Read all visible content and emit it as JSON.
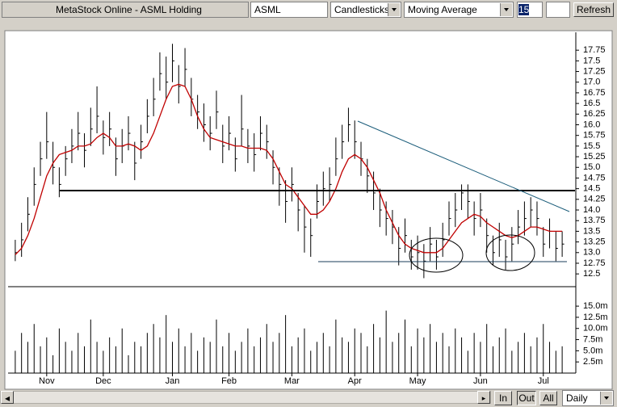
{
  "ui": {
    "window_title": "MetaStock Online - ASML Holding",
    "symbol": "ASML",
    "chart_style": "Candlesticks",
    "indicator": "Moving Average",
    "period": "15",
    "refresh": "Refresh",
    "zoom_in": "In",
    "zoom_out": "Out",
    "zoom_all": "All",
    "interval": "Daily"
  },
  "chart_data": [
    {
      "type": "candlestick",
      "color": "#000000",
      "categories": [
        null,
        null,
        null,
        null,
        null,
        null,
        null,
        null,
        null,
        null,
        null,
        null,
        null,
        null,
        null,
        null,
        null,
        null,
        null,
        null,
        null,
        null,
        null,
        null,
        null,
        null,
        null,
        null,
        null,
        null,
        null,
        null,
        null,
        null,
        null,
        null,
        null,
        null,
        null,
        null,
        null,
        null,
        null,
        null,
        null,
        null,
        null,
        null,
        null,
        null,
        null,
        null,
        null,
        null,
        null,
        null,
        null,
        null,
        null,
        null,
        null,
        null,
        null,
        null,
        null,
        null,
        null,
        null,
        null,
        null,
        null,
        null,
        null,
        null,
        null,
        null,
        null,
        null,
        null,
        null,
        null,
        null,
        null,
        null,
        null,
        null,
        null,
        null
      ],
      "high": [
        13.3,
        13.7,
        14.3,
        15.0,
        15.6,
        16.3,
        15.6,
        15.0,
        15.5,
        15.9,
        16.3,
        15.8,
        16.4,
        16.9,
        16.1,
        16.3,
        15.7,
        15.9,
        16.2,
        15.6,
        16.0,
        16.6,
        17.1,
        17.7,
        17.6,
        17.9,
        17.4,
        17.8,
        17.1,
        16.7,
        16.5,
        16.2,
        16.8,
        16.0,
        16.2,
        15.7,
        16.7,
        15.9,
        15.8,
        16.2,
        16.0,
        15.4,
        15.0,
        14.7,
        15.0,
        14.4,
        14.1,
        13.8,
        14.6,
        14.9,
        15.0,
        15.7,
        16.0,
        16.4,
        16.1,
        15.6,
        15.2,
        14.9,
        14.5,
        14.2,
        14.0,
        13.6,
        13.8,
        13.3,
        13.4,
        13.2,
        13.6,
        13.3,
        13.7,
        14.2,
        14.4,
        14.6,
        14.6,
        14.2,
        14.4,
        13.8,
        13.4,
        13.7,
        13.3,
        13.6,
        14.0,
        14.2,
        14.3,
        14.2,
        13.6,
        13.8,
        13.5,
        13.5
      ],
      "low": [
        12.8,
        12.9,
        13.5,
        14.1,
        14.8,
        15.2,
        14.6,
        14.3,
        14.8,
        15.1,
        15.4,
        15.0,
        15.5,
        15.8,
        15.3,
        15.5,
        14.8,
        15.1,
        15.4,
        14.7,
        15.2,
        15.8,
        16.2,
        16.8,
        16.6,
        17.0,
        16.5,
        16.9,
        16.2,
        15.9,
        15.6,
        15.4,
        15.9,
        15.1,
        15.4,
        14.9,
        15.5,
        15.1,
        14.9,
        15.4,
        15.2,
        14.6,
        14.1,
        13.7,
        14.2,
        13.5,
        13.0,
        12.9,
        13.8,
        14.1,
        14.2,
        14.8,
        15.2,
        15.6,
        15.2,
        14.8,
        14.4,
        14.0,
        13.6,
        13.4,
        13.2,
        12.7,
        13.0,
        12.6,
        12.6,
        12.4,
        12.8,
        12.6,
        12.9,
        13.4,
        13.6,
        14.0,
        13.8,
        13.4,
        13.6,
        13.0,
        12.7,
        12.9,
        12.6,
        12.8,
        13.2,
        13.4,
        13.6,
        13.4,
        12.9,
        13.1,
        12.8,
        12.9
      ],
      "close": [
        13.0,
        13.3,
        13.9,
        14.6,
        15.2,
        15.6,
        15.0,
        14.6,
        15.2,
        15.5,
        15.8,
        15.4,
        15.9,
        16.2,
        15.7,
        15.9,
        15.2,
        15.5,
        15.8,
        15.1,
        15.6,
        16.2,
        16.6,
        17.2,
        17.0,
        17.5,
        16.9,
        17.3,
        16.6,
        16.3,
        16.0,
        15.8,
        16.3,
        15.5,
        15.8,
        15.2,
        15.9,
        15.5,
        15.3,
        15.8,
        15.6,
        15.0,
        14.6,
        14.2,
        14.6,
        14.0,
        13.6,
        13.4,
        14.2,
        14.5,
        14.6,
        15.2,
        15.6,
        16.0,
        15.6,
        15.2,
        14.8,
        14.4,
        14.0,
        13.8,
        13.6,
        13.1,
        13.4,
        12.9,
        13.0,
        12.8,
        13.2,
        12.9,
        13.3,
        13.8,
        14.0,
        14.4,
        14.2,
        13.8,
        14.0,
        13.4,
        13.0,
        13.3,
        12.9,
        13.2,
        13.6,
        13.8,
        14.0,
        13.8,
        13.2,
        13.5,
        13.1,
        13.2
      ],
      "overlay": {
        "color": "#c00000",
        "values": [
          12.95,
          13.1,
          13.4,
          13.8,
          14.3,
          14.8,
          15.1,
          15.3,
          15.35,
          15.4,
          15.5,
          15.5,
          15.55,
          15.7,
          15.8,
          15.7,
          15.5,
          15.5,
          15.55,
          15.5,
          15.4,
          15.5,
          15.8,
          16.2,
          16.6,
          16.9,
          16.95,
          16.9,
          16.6,
          16.2,
          15.9,
          15.7,
          15.65,
          15.6,
          15.55,
          15.5,
          15.5,
          15.45,
          15.45,
          15.45,
          15.4,
          15.2,
          14.9,
          14.6,
          14.5,
          14.3,
          14.1,
          13.9,
          13.9,
          14.0,
          14.2,
          14.5,
          14.9,
          15.2,
          15.3,
          15.2,
          15.0,
          14.7,
          14.4,
          14.0,
          13.7,
          13.4,
          13.2,
          13.1,
          13.05,
          13.0,
          13.0,
          13.0,
          13.1,
          13.3,
          13.5,
          13.7,
          13.8,
          13.9,
          13.85,
          13.7,
          13.6,
          13.5,
          13.4,
          13.35,
          13.4,
          13.5,
          13.6,
          13.6,
          13.55,
          13.5,
          13.5,
          13.5
        ]
      },
      "ylim": [
        12.2,
        18.17
      ],
      "yticks": [
        12.5,
        12.75,
        {
          "value": 13,
          "label": "13.0"
        },
        13.25,
        13.5,
        13.75,
        {
          "value": 14,
          "label": "14.0"
        },
        14.25,
        14.5,
        14.75,
        {
          "value": 15,
          "label": "15.0"
        },
        15.25,
        15.5,
        15.75,
        {
          "value": 16,
          "label": "16.0"
        },
        16.25,
        16.5,
        16.75,
        {
          "value": 17,
          "label": "17.0"
        },
        17.25,
        17.5,
        17.75
      ]
    },
    {
      "type": "bar",
      "color": "#000000",
      "values": [
        5,
        9,
        7,
        11,
        6,
        8,
        4,
        10,
        7,
        5,
        9,
        6,
        12,
        7,
        5,
        8,
        6,
        10,
        4,
        7,
        6,
        9,
        11,
        8,
        13,
        7,
        10,
        6,
        9,
        5,
        8,
        7,
        12,
        6,
        9,
        5,
        7,
        10,
        6,
        8,
        11,
        7,
        9,
        13,
        6,
        8,
        10,
        5,
        7,
        9,
        6,
        12,
        8,
        7,
        10,
        9,
        6,
        11,
        8,
        14,
        7,
        9,
        12,
        6,
        10,
        8,
        11,
        7,
        9,
        6,
        10,
        8,
        5,
        9,
        7,
        11,
        6,
        8,
        10,
        5,
        7,
        9,
        6,
        8,
        11,
        7,
        5,
        6
      ],
      "ylim": [
        0,
        19
      ],
      "yticks": [
        {
          "value": 2.5,
          "label": "2.5m"
        },
        {
          "value": 5,
          "label": "5.0m"
        },
        {
          "value": 7.5,
          "label": "7.5m"
        },
        {
          "value": 10,
          "label": "10.0m"
        },
        {
          "value": 12.5,
          "label": "12.5m"
        },
        {
          "value": 15,
          "label": "15.0m"
        }
      ],
      "xticks": [
        {
          "value": 5,
          "label": "Nov"
        },
        {
          "value": 14,
          "label": "Dec"
        },
        {
          "value": 25,
          "label": "Jan"
        },
        {
          "value": 34,
          "label": "Feb"
        },
        {
          "value": 44,
          "label": "Mar"
        },
        {
          "value": 54,
          "label": "Apr"
        },
        {
          "value": 64,
          "label": "May"
        },
        {
          "value": 74,
          "label": "Jun"
        },
        {
          "value": 84,
          "label": "Jul"
        }
      ]
    }
  ]
}
